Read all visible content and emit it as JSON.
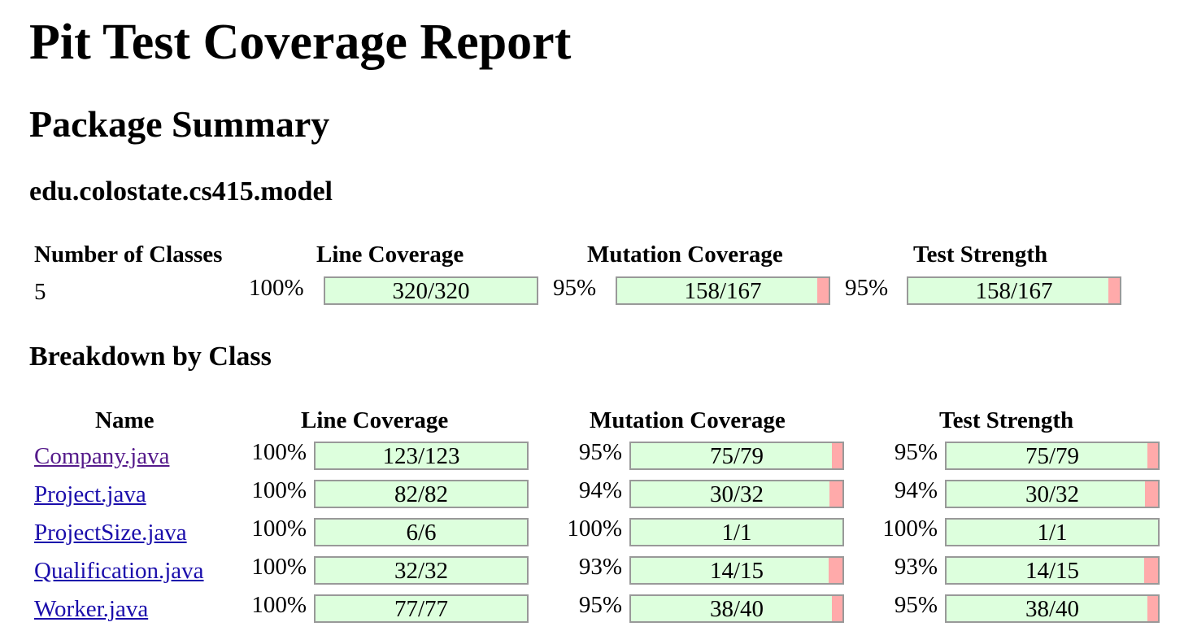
{
  "title": "Pit Test Coverage Report",
  "package_summary": {
    "heading": "Package Summary",
    "package_name": "edu.colostate.cs415.model",
    "headers": {
      "classes": "Number of Classes",
      "line": "Line Coverage",
      "mutation": "Mutation Coverage",
      "strength": "Test Strength"
    },
    "num_classes": "5",
    "line": {
      "pct": "100%",
      "label": "320/320",
      "covered": 320,
      "total": 320
    },
    "mutation": {
      "pct": "95%",
      "label": "158/167",
      "covered": 158,
      "total": 167
    },
    "strength": {
      "pct": "95%",
      "label": "158/167",
      "covered": 158,
      "total": 167
    }
  },
  "breakdown": {
    "heading": "Breakdown by Class",
    "headers": {
      "name": "Name",
      "line": "Line Coverage",
      "mutation": "Mutation Coverage",
      "strength": "Test Strength"
    },
    "rows": [
      {
        "name": "Company.java",
        "visited": true,
        "line": {
          "pct": "100%",
          "label": "123/123",
          "covered": 123,
          "total": 123
        },
        "mutation": {
          "pct": "95%",
          "label": "75/79",
          "covered": 75,
          "total": 79
        },
        "strength": {
          "pct": "95%",
          "label": "75/79",
          "covered": 75,
          "total": 79
        }
      },
      {
        "name": "Project.java",
        "visited": false,
        "line": {
          "pct": "100%",
          "label": "82/82",
          "covered": 82,
          "total": 82
        },
        "mutation": {
          "pct": "94%",
          "label": "30/32",
          "covered": 30,
          "total": 32
        },
        "strength": {
          "pct": "94%",
          "label": "30/32",
          "covered": 30,
          "total": 32
        }
      },
      {
        "name": "ProjectSize.java",
        "visited": false,
        "line": {
          "pct": "100%",
          "label": "6/6",
          "covered": 6,
          "total": 6
        },
        "mutation": {
          "pct": "100%",
          "label": "1/1",
          "covered": 1,
          "total": 1
        },
        "strength": {
          "pct": "100%",
          "label": "1/1",
          "covered": 1,
          "total": 1
        }
      },
      {
        "name": "Qualification.java",
        "visited": false,
        "line": {
          "pct": "100%",
          "label": "32/32",
          "covered": 32,
          "total": 32
        },
        "mutation": {
          "pct": "93%",
          "label": "14/15",
          "covered": 14,
          "total": 15
        },
        "strength": {
          "pct": "93%",
          "label": "14/15",
          "covered": 14,
          "total": 15
        }
      },
      {
        "name": "Worker.java",
        "visited": false,
        "line": {
          "pct": "100%",
          "label": "77/77",
          "covered": 77,
          "total": 77
        },
        "mutation": {
          "pct": "95%",
          "label": "38/40",
          "covered": 38,
          "total": 40
        },
        "strength": {
          "pct": "95%",
          "label": "38/40",
          "covered": 38,
          "total": 40
        }
      }
    ]
  },
  "colors": {
    "covered": "#ddffdd",
    "uncovered": "#ffaaaa",
    "bar_border": "#999999",
    "link": "#1a0dab",
    "link_visited": "#551a8b"
  }
}
